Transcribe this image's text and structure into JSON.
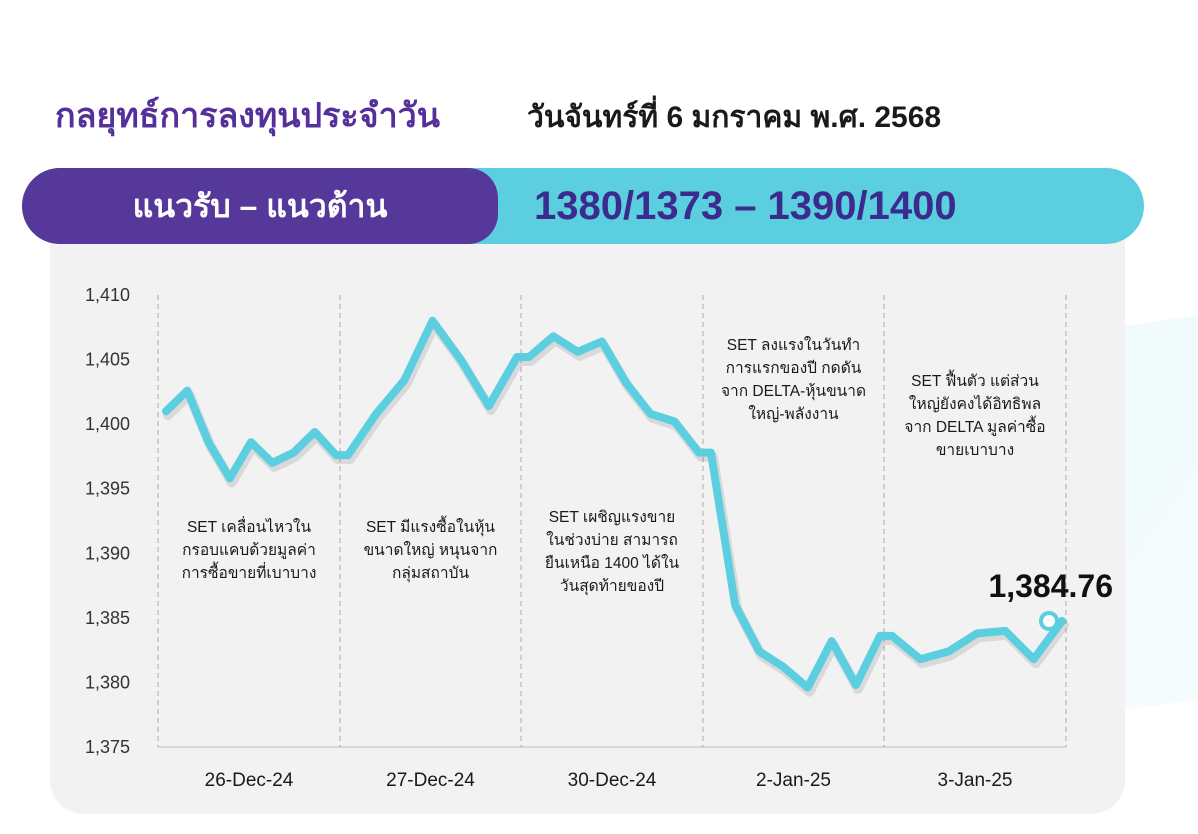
{
  "header": {
    "title": "กลยุทธ์การลงทุนประจำวัน",
    "date": "วันจันทร์ที่ 6 มกราคม พ.ศ. 2568"
  },
  "band": {
    "label": "แนวรับ – แนวต้าน",
    "value": "1380/1373 – 1390/1400"
  },
  "colors": {
    "title": "#55309a",
    "band_left": "#55389a",
    "band_right": "#5bcfe0",
    "band_value": "#3b2b8c",
    "line": "#5bcfe0"
  },
  "chart_data": {
    "type": "line",
    "title": "",
    "xlabel": "",
    "ylabel": "",
    "ylim": [
      1375,
      1410
    ],
    "yticks": [
      "1,410",
      "1,405",
      "1,400",
      "1,395",
      "1,390",
      "1,385",
      "1,380",
      "1,375"
    ],
    "ytick_values": [
      1410,
      1405,
      1400,
      1395,
      1390,
      1385,
      1380,
      1375
    ],
    "categories": [
      "26-Dec-24",
      "27-Dec-24",
      "30-Dec-24",
      "2-Jan-25",
      "3-Jan-25"
    ],
    "grid": "dashed vertical separators between days",
    "series": [
      {
        "name": "",
        "color": "#5bcfe0",
        "values": [
          [
            1401.0,
            1402.6,
            1398.6,
            1395.8,
            1398.6,
            1397.0,
            1397.8,
            1399.4,
            1397.6
          ],
          [
            1397.6,
            1400.8,
            1403.4,
            1408.0,
            1405.0,
            1401.4,
            1405.2
          ],
          [
            1405.2,
            1406.8,
            1405.6,
            1406.4,
            1403.2,
            1400.8,
            1400.2,
            1397.8
          ],
          [
            1397.8,
            1386.0,
            1382.4,
            1381.2,
            1379.6,
            1383.2,
            1379.8,
            1383.6
          ],
          [
            1383.6,
            1381.8,
            1382.4,
            1383.8,
            1384.0,
            1381.8,
            1384.76
          ]
        ]
      }
    ],
    "last_value": 1384.76,
    "last_value_label": "1,384.76",
    "annotations": [
      [
        "SET เคลื่อนไหวใน",
        "กรอบแคบด้วยมูลค่า",
        "การซื้อขายที่เบาบาง"
      ],
      [
        "SET มีแรงซื้อในหุ้น",
        "ขนาดใหญ่ หนุนจาก",
        "กลุ่มสถาบัน"
      ],
      [
        "SET เผชิญแรงขาย",
        "ในช่วงบ่าย สามารถ",
        "ยืนเหนือ 1400 ได้ใน",
        "วันสุดท้ายของปี"
      ],
      [
        "SET ลงแรงในวันทำ",
        "การแรกของปี กดดัน",
        "จาก DELTA-หุ้นขนาด",
        "ใหญ่-พลังงาน"
      ],
      [
        "SET ฟื้นตัว แต่ส่วน",
        "ใหญ่ยังคงได้อิทธิพล",
        "จาก DELTA มูลค่าซื้อ",
        "ขายเบาบาง"
      ]
    ]
  }
}
